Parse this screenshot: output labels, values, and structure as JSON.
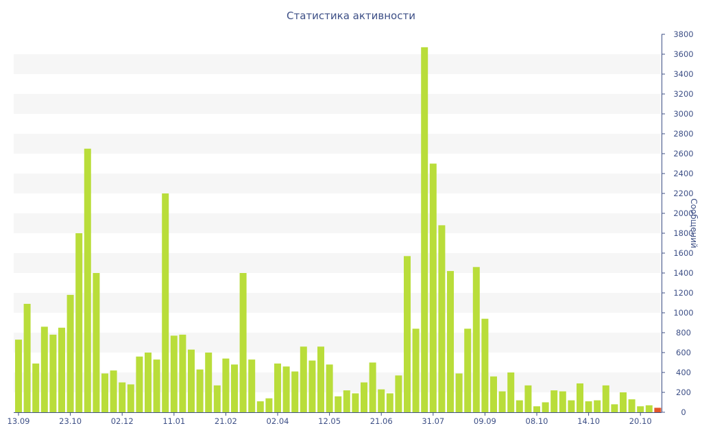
{
  "chart_data": {
    "type": "bar",
    "title": "Статистика активности",
    "xlabel": "",
    "ylabel": "Сообщений",
    "ylim": [
      0,
      3800
    ],
    "y_ticks": [
      0,
      200,
      400,
      600,
      800,
      1000,
      1200,
      1400,
      1600,
      1800,
      2000,
      2200,
      2400,
      2600,
      2800,
      3000,
      3200,
      3400,
      3600,
      3800
    ],
    "x_tick_labels": [
      {
        "label": "13.09",
        "index": 0
      },
      {
        "label": "23.10",
        "index": 6
      },
      {
        "label": "02.12",
        "index": 12
      },
      {
        "label": "11.01",
        "index": 18
      },
      {
        "label": "21.02",
        "index": 24
      },
      {
        "label": "02.04",
        "index": 30
      },
      {
        "label": "12.05",
        "index": 36
      },
      {
        "label": "21.06",
        "index": 42
      },
      {
        "label": "31.07",
        "index": 48
      },
      {
        "label": "09.09",
        "index": 54
      },
      {
        "label": "08.10",
        "index": 60
      },
      {
        "label": "14.10",
        "index": 66
      },
      {
        "label": "20.10",
        "index": 72
      }
    ],
    "grid": "alternating horizontal bands",
    "y_axis_position": "right",
    "series": [
      {
        "color": "#b9dd3a",
        "values": [
          730,
          1090,
          490,
          860,
          780,
          850,
          1180,
          1800,
          2650,
          1400,
          390,
          420,
          300,
          280,
          560,
          600,
          530,
          2200,
          770,
          780,
          630,
          430,
          600,
          270,
          540,
          480,
          1400,
          530,
          110,
          140,
          490,
          460,
          410,
          660,
          520,
          660,
          480,
          160,
          220,
          190,
          300,
          500,
          230,
          190,
          370,
          1570,
          840,
          3670,
          2500,
          1880,
          1420,
          390,
          840,
          1460,
          940,
          360,
          210,
          400,
          120,
          270,
          60,
          100,
          220,
          210,
          120,
          290,
          110,
          120,
          270,
          80,
          200,
          130,
          60,
          70
        ]
      },
      {
        "color": "#e2552a",
        "note": "current period",
        "index": 74,
        "value": 45
      }
    ]
  }
}
